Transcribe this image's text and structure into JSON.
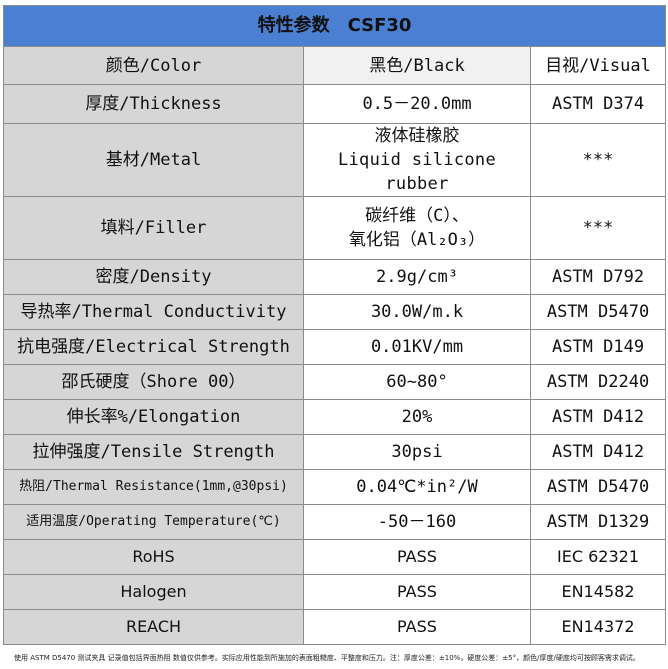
{
  "title": "特性参数　CSF30",
  "table": {
    "rows": [
      [
        "颜色/Color",
        "黑色/Black",
        "目视/Visual"
      ],
      [
        "厚度/Thickness",
        "0.5－20.0mm",
        "ASTM D374"
      ],
      [
        "基材/Metal",
        [
          "液体硅橡胶",
          "Liquid silicone rubber"
        ],
        "***"
      ],
      [
        "填料/Filler",
        [
          "碳纤维（C）、",
          "氧化铝（Al₂O₃）"
        ],
        "***"
      ],
      [
        "密度/Density",
        "2.9g/cm³",
        "ASTM D792"
      ],
      [
        "导热率/Thermal Conductivity",
        "30.0W/m.k",
        "ASTM D5470"
      ],
      [
        "抗电强度/Electrical Strength",
        "0.01KV/mm",
        "ASTM D149"
      ],
      [
        "邵氏硬度（Shore 00）",
        "60~80°",
        "ASTM D2240"
      ],
      [
        "伸长率%/Elongation",
        "20%",
        "ASTM D412"
      ],
      [
        "拉伸强度/Tensile Strength",
        "30psi",
        "ASTM D412"
      ],
      [
        "热阻/Thermal Resistance(1mm,@30psi)",
        "0.04℃*in²/W",
        "ASTM D5470"
      ],
      [
        "适用温度/Operating Temperature(℃)",
        "-50－160",
        "ASTM D1329"
      ],
      [
        "RoHS",
        "PASS",
        "IEC 62321"
      ],
      [
        "Halogen",
        "PASS",
        "EN14582"
      ],
      [
        "REACH",
        "PASS",
        "EN14372"
      ]
    ]
  },
  "footnote": "使用 ASTM D5470 测试夹具 记录值包括界面热阻 数值仅供参考。实际应用性能到所施加的表面粗糙度、平整度和压力。注：厚度公差：±10%，硬度公差：±5°，颜色/厚度/硬度均可按顾客需求调试。"
}
